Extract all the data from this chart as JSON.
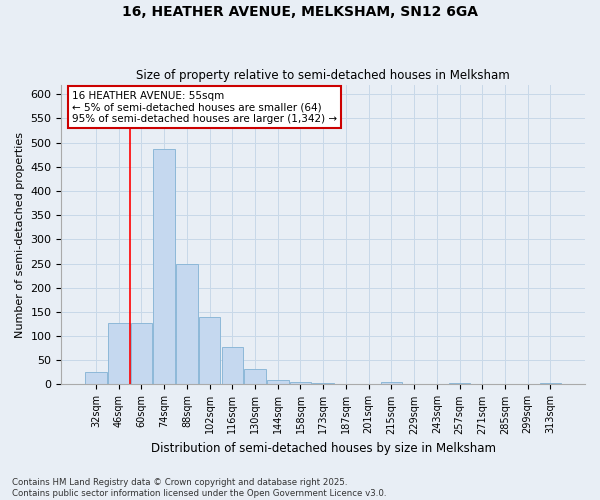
{
  "title1": "16, HEATHER AVENUE, MELKSHAM, SN12 6GA",
  "title2": "Size of property relative to semi-detached houses in Melksham",
  "xlabel": "Distribution of semi-detached houses by size in Melksham",
  "ylabel": "Number of semi-detached properties",
  "categories": [
    "32sqm",
    "46sqm",
    "60sqm",
    "74sqm",
    "88sqm",
    "102sqm",
    "116sqm",
    "130sqm",
    "144sqm",
    "158sqm",
    "173sqm",
    "187sqm",
    "201sqm",
    "215sqm",
    "229sqm",
    "243sqm",
    "257sqm",
    "271sqm",
    "285sqm",
    "299sqm",
    "313sqm"
  ],
  "values": [
    25,
    128,
    128,
    487,
    248,
    140,
    78,
    32,
    10,
    5,
    2,
    0,
    0,
    5,
    0,
    0,
    2,
    0,
    0,
    0,
    3
  ],
  "bar_color": "#c5d8ef",
  "bar_edge_color": "#8db8d8",
  "grid_color": "#c8d8e8",
  "background_color": "#e8eef5",
  "red_line_x": 1.5,
  "annotation_title": "16 HEATHER AVENUE: 55sqm",
  "annotation_line1": "← 5% of semi-detached houses are smaller (64)",
  "annotation_line2": "95% of semi-detached houses are larger (1,342) →",
  "annotation_box_facecolor": "#ffffff",
  "annotation_box_edgecolor": "#cc0000",
  "footer": "Contains HM Land Registry data © Crown copyright and database right 2025.\nContains public sector information licensed under the Open Government Licence v3.0.",
  "ylim": [
    0,
    620
  ],
  "yticks": [
    0,
    50,
    100,
    150,
    200,
    250,
    300,
    350,
    400,
    450,
    500,
    550,
    600
  ],
  "spine_color": "#aaaaaa"
}
